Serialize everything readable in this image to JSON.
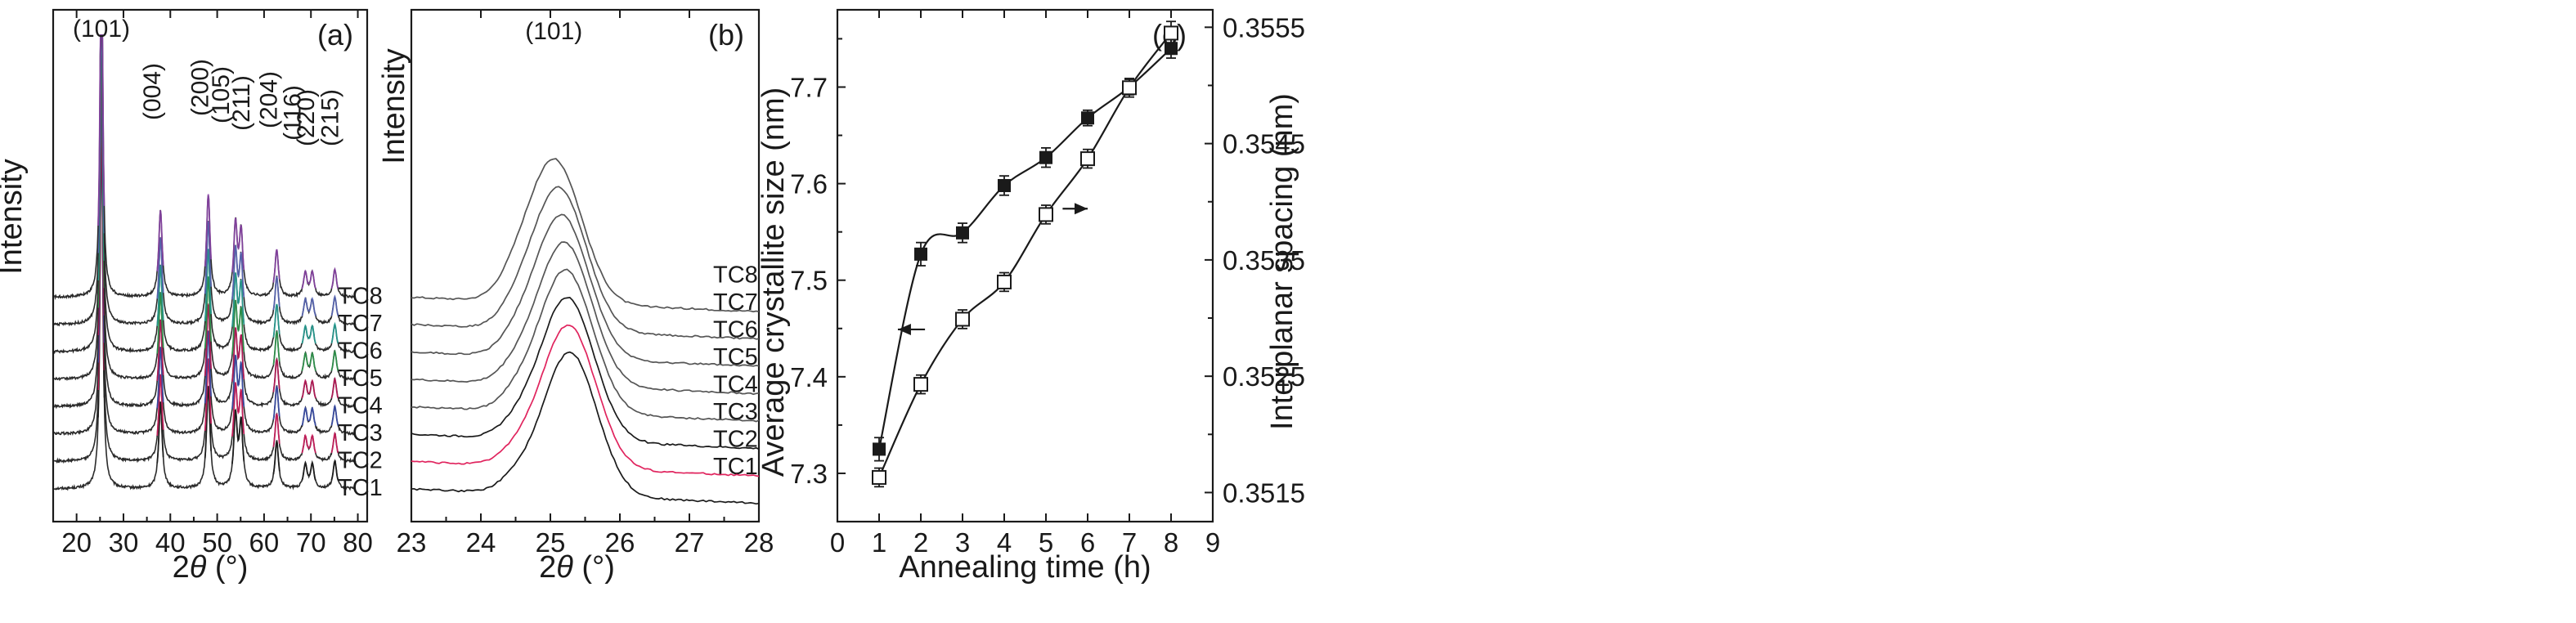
{
  "chart_data": [
    {
      "panel": "(a)",
      "type": "line",
      "xlabel_prefix": "2",
      "xlabel_var": "θ",
      "xlabel_unit": " (°)",
      "ylabel": "Intensity",
      "xlim": [
        15,
        82
      ],
      "xticks": [
        20,
        30,
        40,
        50,
        60,
        70,
        80
      ],
      "peaks": [
        {
          "label": "(101)",
          "x": 25.3,
          "h": 1.0
        },
        {
          "label": "(004)",
          "x": 37.9,
          "h": 0.22
        },
        {
          "label": "(200)",
          "x": 48.1,
          "h": 0.26
        },
        {
          "label": "(105)",
          "x": 53.9,
          "h": 0.18
        },
        {
          "label": "(211)",
          "x": 55.1,
          "h": 0.16
        },
        {
          "label": "(204)",
          "x": 62.7,
          "h": 0.12
        },
        {
          "label": "(116)",
          "x": 68.8,
          "h": 0.06
        },
        {
          "label": "(220)",
          "x": 70.3,
          "h": 0.06
        },
        {
          "label": "(215)",
          "x": 75.1,
          "h": 0.07
        }
      ],
      "series": [
        {
          "name": "TC1",
          "color": "#1a1a1a"
        },
        {
          "name": "TC2",
          "color": "#d81b60"
        },
        {
          "name": "TC3",
          "color": "#3a4fb0"
        },
        {
          "name": "TC4",
          "color": "#c2185b"
        },
        {
          "name": "TC5",
          "color": "#2e9e4f"
        },
        {
          "name": "TC6",
          "color": "#26a69a"
        },
        {
          "name": "TC7",
          "color": "#5c6bc0"
        },
        {
          "name": "TC8",
          "color": "#8e44ad"
        }
      ]
    },
    {
      "panel": "(b)",
      "type": "line",
      "xlabel_prefix": "2",
      "xlabel_var": "θ",
      "xlabel_unit": " (°)",
      "ylabel": "Intensity",
      "xlim": [
        23,
        28
      ],
      "xticks": [
        23,
        24,
        25,
        26,
        27,
        28
      ],
      "peak_label": "(101)",
      "series": [
        {
          "name": "TC1",
          "center": 25.28,
          "color": "#1a1a1a"
        },
        {
          "name": "TC2",
          "center": 25.26,
          "color": "#e0245e"
        },
        {
          "name": "TC3",
          "center": 25.24,
          "color": "#1a1a1a"
        },
        {
          "name": "TC4",
          "center": 25.22,
          "color": "#555555"
        },
        {
          "name": "TC5",
          "center": 25.2,
          "color": "#555555"
        },
        {
          "name": "TC6",
          "center": 25.16,
          "color": "#555555"
        },
        {
          "name": "TC7",
          "center": 25.12,
          "color": "#555555"
        },
        {
          "name": "TC8",
          "center": 25.06,
          "color": "#555555"
        }
      ]
    },
    {
      "panel": "(c)",
      "type": "scatter",
      "xlabel": "Annealing time (h)",
      "ylabel": "Average crystallite size (nm)",
      "y2label": "Interplanar spacing (nm)",
      "xlim": [
        0,
        9
      ],
      "ylim": [
        7.25,
        7.78
      ],
      "y2lim": [
        0.35125,
        0.35565
      ],
      "xticks": [
        0,
        1,
        2,
        3,
        4,
        5,
        6,
        7,
        8,
        9
      ],
      "yticks": [
        7.3,
        7.4,
        7.5,
        7.6,
        7.7
      ],
      "y2ticks": [
        "0.3515",
        "0.3525",
        "0.3535",
        "0.3545",
        "0.3555"
      ],
      "series": [
        {
          "name": "Average crystallite size",
          "marker": "filled-square",
          "axis": "left",
          "x": [
            1,
            2,
            3,
            4,
            5,
            6,
            7,
            8
          ],
          "y": [
            7.325,
            7.527,
            7.549,
            7.598,
            7.627,
            7.668,
            7.7,
            7.74
          ],
          "err": [
            0.012,
            0.012,
            0.01,
            0.01,
            0.01,
            0.008,
            0.008,
            0.01
          ]
        },
        {
          "name": "Interplanar spacing",
          "marker": "open-square",
          "axis": "right",
          "x": [
            1,
            2,
            3,
            4,
            5,
            6,
            7,
            8
          ],
          "y": [
            0.35163,
            0.35243,
            0.35299,
            0.35331,
            0.35389,
            0.35437,
            0.35498,
            0.35545
          ],
          "err": [
            8e-05,
            8e-05,
            8e-05,
            8e-05,
            8e-05,
            8e-05,
            8e-05,
            0.0001
          ]
        }
      ]
    }
  ]
}
